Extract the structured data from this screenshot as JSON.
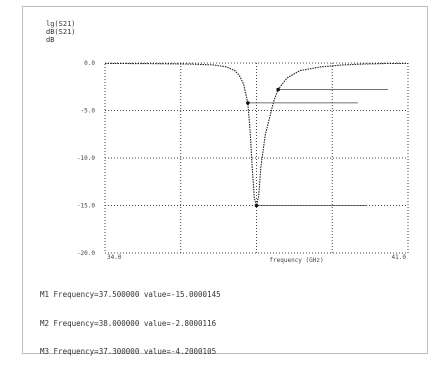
{
  "corner_text": [
    "lg(S21)",
    "dB(S21)",
    "dB"
  ],
  "chart_data": {
    "type": "line",
    "title": "",
    "xlabel": "frequency (GHz)",
    "ylabel": "",
    "xlim": [
      34,
      41
    ],
    "ylim": [
      -20,
      0
    ],
    "x_tick_labels": [
      "34.0",
      "41.0"
    ],
    "y_tick_labels": [
      "0.0",
      "-5.0",
      "-10.0",
      "-15.0",
      "-20.0"
    ],
    "y_ticks": [
      0,
      -5,
      -10,
      -15,
      -20
    ],
    "x_gridlines": [
      35.75,
      37.5,
      39.25
    ],
    "grid": true,
    "series": [
      {
        "x": [
          34.0,
          34.5,
          35.0,
          35.5,
          36.0,
          36.5,
          36.8,
          37.0,
          37.1,
          37.2,
          37.3,
          37.35,
          37.4,
          37.45,
          37.5,
          37.55,
          37.6,
          37.7,
          37.8,
          37.9,
          38.0,
          38.2,
          38.5,
          39.0,
          39.5,
          40.0,
          40.5,
          41.0
        ],
        "y": [
          -0.05,
          -0.05,
          -0.06,
          -0.08,
          -0.12,
          -0.2,
          -0.4,
          -0.8,
          -1.3,
          -2.2,
          -4.2,
          -7.0,
          -11.0,
          -14.2,
          -15.0,
          -14.0,
          -11.0,
          -7.6,
          -5.8,
          -4.0,
          -2.8,
          -1.6,
          -0.8,
          -0.4,
          -0.2,
          -0.1,
          -0.05,
          -0.05
        ]
      }
    ],
    "markers": [
      {
        "x": 37.5,
        "y": -15.0
      },
      {
        "x": 38.0,
        "y": -2.8
      },
      {
        "x": 37.3,
        "y": -4.2
      }
    ]
  },
  "marker_readouts": [
    "M1 Frequency=37.500000 value=-15.0000145",
    "M2 Frequency=38.000000 value=-2.8000116",
    "M3 Frequency=37.300000 value=-4.2000105"
  ]
}
